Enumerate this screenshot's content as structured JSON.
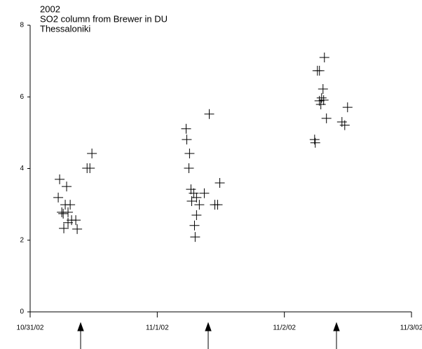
{
  "chart_data": {
    "type": "scatter",
    "title": [
      "2002",
      "SO2 column from Brewer in DU",
      "Thessaloniki"
    ],
    "xlim": [
      0,
      3
    ],
    "xticks": [
      {
        "value": 0,
        "label": "10/31/02"
      },
      {
        "value": 1,
        "label": "11/1/02"
      },
      {
        "value": 2,
        "label": "11/2/02"
      },
      {
        "value": 3,
        "label": "11/3/02"
      }
    ],
    "ylim": [
      0,
      8
    ],
    "yticks": [
      0,
      2,
      4,
      6,
      8
    ],
    "color": "#000000",
    "x": [
      0.232,
      0.221,
      0.287,
      0.249,
      0.26,
      0.276,
      0.315,
      0.298,
      0.265,
      0.298,
      0.326,
      0.359,
      0.37,
      0.448,
      0.47,
      0.486,
      1.227,
      1.232,
      1.254,
      1.249,
      1.265,
      1.287,
      1.271,
      1.309,
      1.331,
      1.37,
      1.309,
      1.293,
      1.298,
      1.409,
      1.453,
      1.475,
      1.492,
      2.26,
      2.276,
      2.315,
      2.304,
      2.293,
      2.276,
      2.309,
      2.287,
      2.331,
      2.238,
      2.243,
      2.453,
      2.475,
      2.497
    ],
    "values": [
      3.7,
      3.19,
      3.5,
      2.78,
      2.74,
      2.99,
      2.99,
      2.78,
      2.33,
      2.49,
      2.56,
      2.56,
      2.31,
      4.01,
      4.01,
      4.42,
      5.11,
      4.81,
      4.42,
      4.01,
      3.42,
      3.31,
      3.09,
      3.19,
      2.99,
      3.31,
      2.7,
      2.41,
      2.09,
      5.52,
      2.99,
      2.99,
      3.6,
      6.73,
      6.73,
      7.1,
      6.22,
      5.97,
      5.89,
      5.91,
      5.79,
      5.4,
      4.81,
      4.72,
      5.3,
      5.21,
      5.71
    ]
  }
}
